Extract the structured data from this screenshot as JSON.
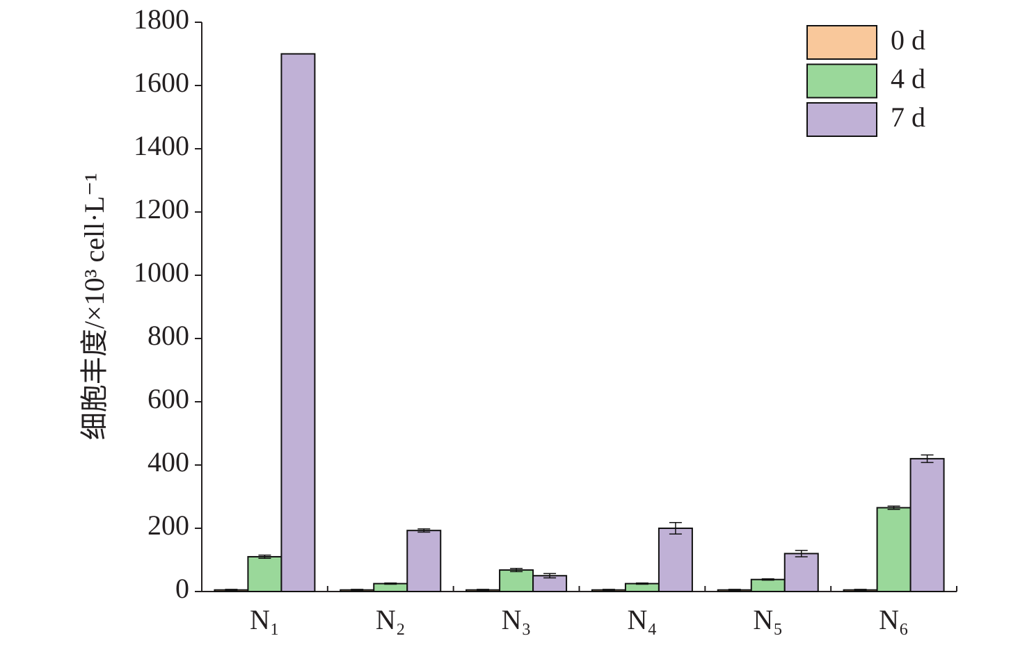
{
  "chart_data": {
    "type": "bar",
    "y_label": "细胞丰度/×10³ cell·L⁻¹",
    "categories": [
      "N₁",
      "N₂",
      "N₃",
      "N₄",
      "N₅",
      "N₆"
    ],
    "series": [
      {
        "name": "0 d",
        "color": "#f9c89b",
        "values": [
          5,
          5,
          5,
          5,
          5,
          5
        ],
        "errors": [
          2,
          2,
          2,
          2,
          2,
          2
        ]
      },
      {
        "name": "4 d",
        "color": "#9ad89a",
        "values": [
          110,
          25,
          68,
          25,
          38,
          265
        ],
        "errors": [
          5,
          2,
          5,
          2,
          2,
          5
        ]
      },
      {
        "name": "7 d",
        "color": "#c0b1d6",
        "values": [
          1700,
          193,
          50,
          200,
          120,
          420
        ],
        "errors": [
          0,
          5,
          7,
          18,
          10,
          12
        ]
      }
    ],
    "ylim": [
      0,
      1800
    ],
    "yticks": [
      0,
      200,
      400,
      600,
      800,
      1000,
      1200,
      1400,
      1600,
      1800
    ],
    "legend": "top-right"
  }
}
